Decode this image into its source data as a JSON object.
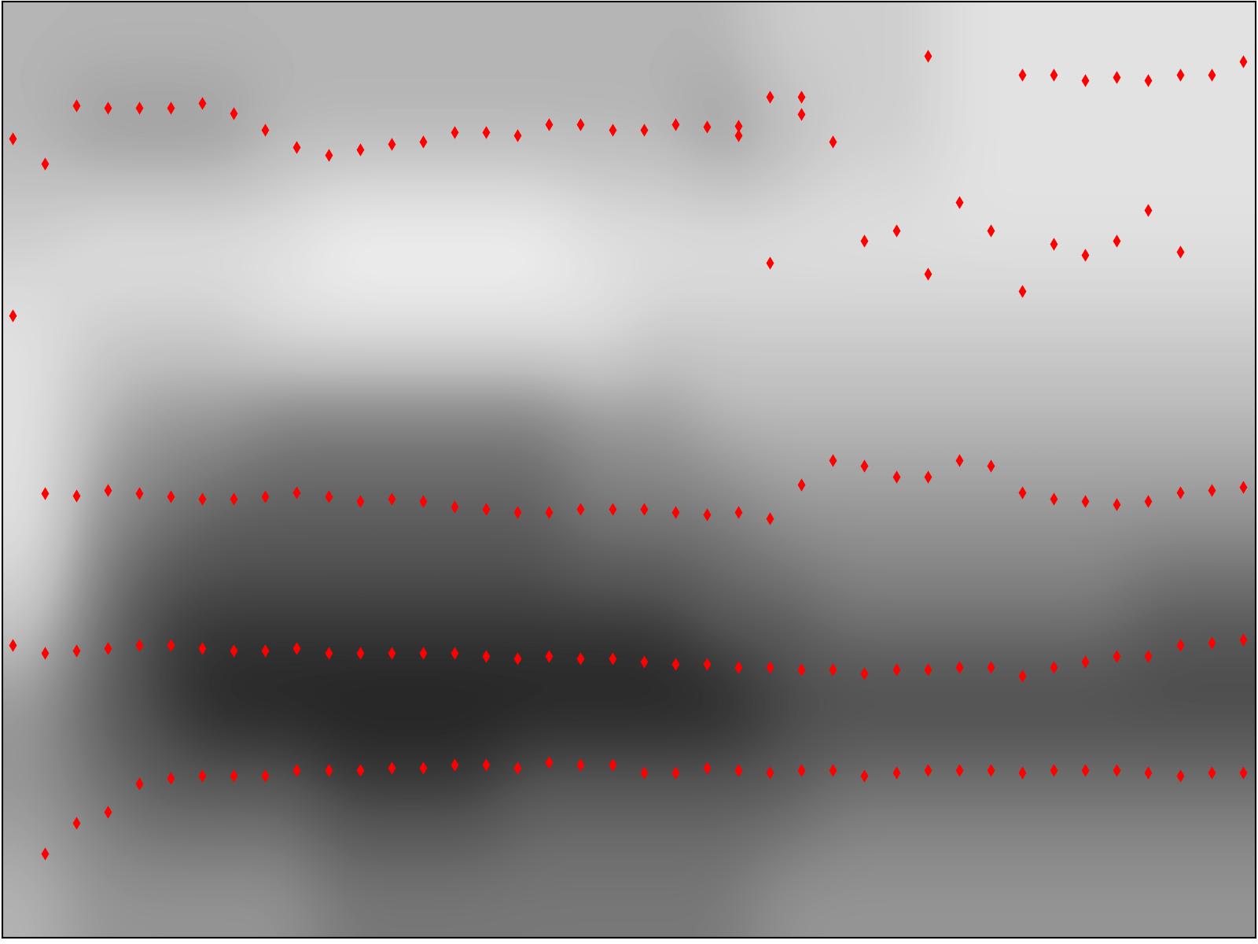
{
  "chart_data": {
    "type": "scatter",
    "color": "#ff0000",
    "marker": "diamond",
    "tick_labels": false,
    "xlim": [
      -0.33,
      39.4
    ],
    "ylim": [
      0,
      5000
    ],
    "xticks": [],
    "yticks": [],
    "spectrogram_range": [
      0,
      10
    ],
    "spectrogram": [
      [
        4,
        5,
        5,
        5,
        5,
        6,
        6,
        6,
        6,
        6,
        6,
        6,
        5,
        5,
        5,
        5,
        5,
        5,
        5,
        5
      ],
      [
        5,
        6,
        7,
        7,
        7,
        8,
        8,
        8,
        7,
        7,
        7,
        7,
        7,
        6,
        6,
        6,
        6,
        6,
        6,
        6
      ],
      [
        5,
        7,
        8,
        9,
        9,
        9,
        9,
        9,
        9,
        9,
        9,
        9,
        8,
        8,
        8,
        8,
        8,
        8,
        8,
        8
      ],
      [
        3,
        6,
        8,
        8,
        8,
        8,
        8,
        8,
        8,
        8,
        8,
        7,
        7,
        6,
        6,
        6,
        6,
        6,
        7,
        7
      ],
      [
        2,
        5,
        6,
        7,
        7,
        7,
        7,
        7,
        7,
        6,
        6,
        6,
        5,
        5,
        5,
        5,
        5,
        5,
        5,
        5
      ],
      [
        2,
        4,
        5,
        5,
        6,
        6,
        6,
        6,
        6,
        5,
        5,
        4,
        4,
        4,
        4,
        4,
        4,
        4,
        4,
        4
      ],
      [
        2,
        3,
        3,
        3,
        2,
        2,
        2,
        2,
        2,
        2,
        3,
        3,
        3,
        3,
        3,
        3,
        3,
        3,
        3,
        3
      ],
      [
        3,
        2,
        2,
        2,
        2,
        1,
        1,
        1,
        1,
        2,
        2,
        2,
        2,
        2,
        2,
        2,
        2,
        2,
        2,
        2
      ],
      [
        4,
        5,
        5,
        5,
        4,
        4,
        4,
        4,
        4,
        4,
        4,
        5,
        4,
        3,
        3,
        2,
        2,
        2,
        2,
        2
      ],
      [
        4,
        4,
        4,
        4,
        4,
        4,
        4,
        4,
        4,
        4,
        4,
        4,
        3,
        3,
        3,
        2,
        2,
        2,
        2,
        2
      ]
    ],
    "x": [
      0,
      0,
      0,
      1,
      1,
      1,
      1,
      2,
      2,
      2,
      2,
      3,
      3,
      3,
      3,
      4,
      4,
      4,
      4,
      5,
      5,
      5,
      5,
      6,
      6,
      6,
      6,
      7,
      7,
      7,
      7,
      8,
      8,
      8,
      8,
      9,
      9,
      9,
      9,
      10,
      10,
      10,
      10,
      11,
      11,
      11,
      11,
      12,
      12,
      12,
      12,
      13,
      13,
      13,
      13,
      14,
      14,
      14,
      14,
      15,
      15,
      15,
      15,
      16,
      16,
      16,
      16,
      17,
      17,
      17,
      17,
      18,
      18,
      18,
      18,
      19,
      19,
      19,
      19,
      20,
      20,
      20,
      20,
      21,
      21,
      21,
      21,
      22,
      22,
      22,
      22,
      23,
      23,
      23,
      23,
      23,
      24,
      24,
      24,
      24,
      24,
      25,
      25,
      25,
      25,
      25,
      26,
      26,
      26,
      26,
      27,
      27,
      27,
      27,
      28,
      28,
      28,
      28,
      29,
      29,
      29,
      29,
      29,
      30,
      30,
      30,
      30,
      31,
      31,
      31,
      31,
      32,
      32,
      32,
      32,
      32,
      33,
      33,
      33,
      33,
      33,
      34,
      34,
      34,
      34,
      34,
      35,
      35,
      35,
      35,
      35,
      36,
      36,
      36,
      36,
      36,
      37,
      37,
      37,
      37,
      37,
      38,
      38,
      38,
      38,
      39,
      39,
      39,
      39
    ],
    "y": [
      4268,
      3322,
      1563,
      4135,
      2372,
      1520,
      449,
      4448,
      2363,
      1533,
      612,
      4435,
      2389,
      1545,
      672,
      4435,
      2372,
      1563,
      822,
      4435,
      2359,
      1563,
      852,
      4461,
      2346,
      1545,
      865,
      4405,
      2346,
      1533,
      865,
      4315,
      2359,
      1533,
      865,
      4225,
      2376,
      1545,
      895,
      4182,
      2359,
      1520,
      895,
      4212,
      2333,
      1520,
      895,
      4242,
      2346,
      1520,
      908,
      4255,
      2333,
      1520,
      908,
      4302,
      2303,
      1520,
      925,
      4302,
      2290,
      1503,
      925,
      4285,
      2273,
      1490,
      908,
      4345,
      2273,
      1503,
      937,
      4345,
      2290,
      1490,
      925,
      4315,
      2290,
      1490,
      925,
      4315,
      2290,
      1473,
      882,
      4345,
      2273,
      1460,
      882,
      4332,
      2260,
      1460,
      908,
      4337,
      4285,
      2273,
      1443,
      895,
      4495,
      3604,
      2239,
      1443,
      882,
      4495,
      4401,
      2419,
      1430,
      895,
      4255,
      2551,
      1430,
      895,
      3724,
      2521,
      1413,
      865,
      3780,
      2461,
      1430,
      882,
      4713,
      3545,
      2461,
      1430,
      895,
      3930,
      2551,
      1443,
      895,
      3780,
      2521,
      1443,
      895,
      4610,
      3455,
      2376,
      1400,
      882,
      4610,
      3707,
      2346,
      1443,
      895,
      4580,
      3647,
      2333,
      1473,
      895,
      4598,
      3724,
      2316,
      1503,
      895,
      4580,
      3887,
      2333,
      1503,
      882,
      4610,
      3664,
      2376,
      1563,
      865,
      4610,
      2389,
      1575,
      882,
      4683,
      2406,
      1592,
      882
    ]
  }
}
